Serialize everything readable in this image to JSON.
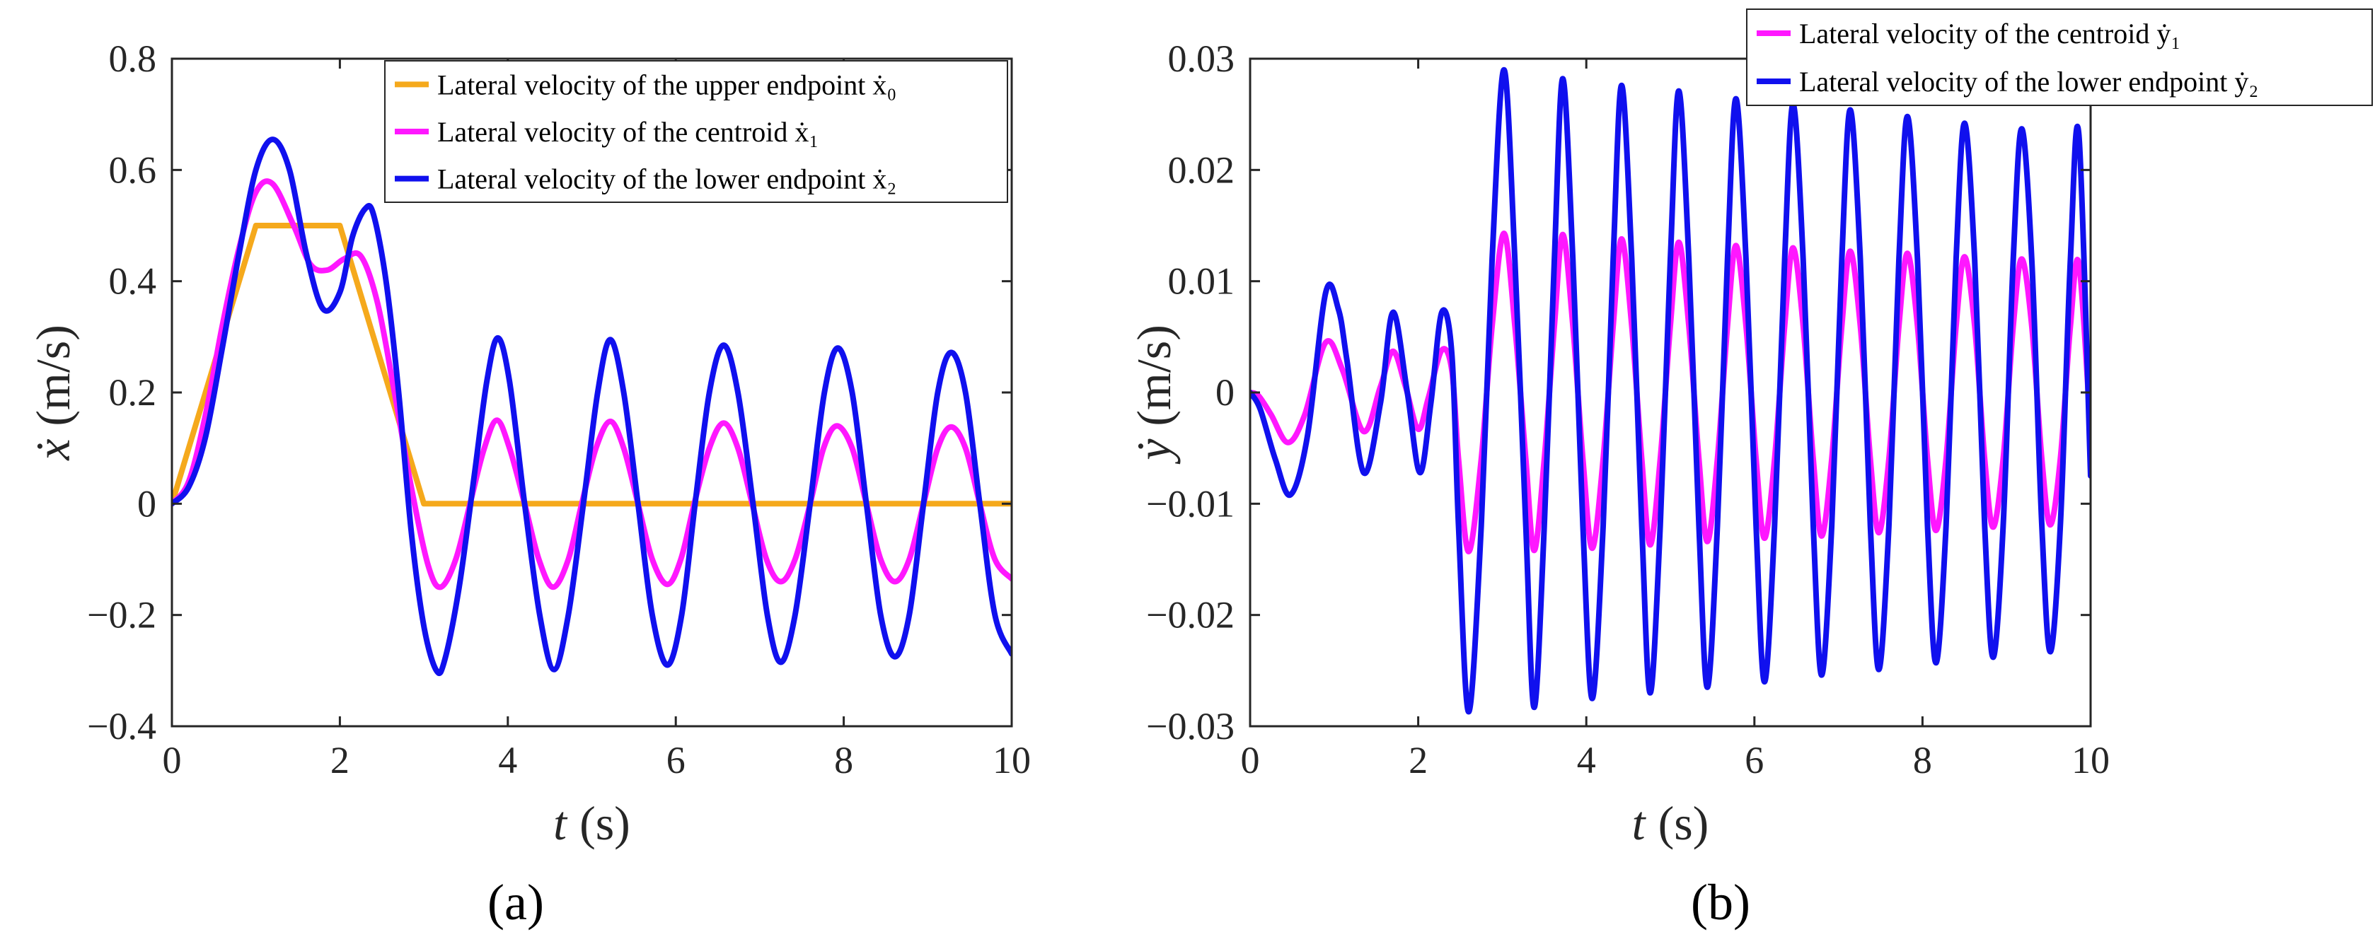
{
  "chart_data": [
    {
      "type": "line",
      "panel_label": "(a)",
      "xlabel": "t (s)",
      "xlabel_var": "t",
      "xlabel_unit": "(s)",
      "ylabel": "ẋ (m/s)",
      "ylabel_var": "ẋ",
      "ylabel_unit": "(m/s)",
      "xlim": [
        0,
        10
      ],
      "ylim": [
        -0.4,
        0.8
      ],
      "xticks": [
        0,
        2,
        4,
        6,
        8,
        10
      ],
      "xtick_labels": [
        "0",
        "2",
        "4",
        "6",
        "8",
        "10"
      ],
      "yticks": [
        -0.4,
        -0.2,
        0,
        0.2,
        0.4,
        0.6,
        0.8
      ],
      "ytick_labels": [
        "−0.4",
        "−0.2",
        "0",
        "0.2",
        "0.4",
        "0.6",
        "0.8"
      ],
      "grid": false,
      "legend_position": "top-right",
      "series": [
        {
          "name": "Lateral velocity of the upper endpoint ẋ₀",
          "color": "#f5a91c",
          "x": [
            0,
            1,
            2,
            3,
            10
          ],
          "y": [
            0,
            0.5,
            0.5,
            0,
            0
          ]
        },
        {
          "name": "Lateral velocity of the centroid ẋ₁",
          "color": "#ff17ff",
          "x": [
            0,
            0.2,
            0.4,
            0.6,
            0.8,
            1.0,
            1.2,
            1.45,
            1.65,
            1.85,
            2.05,
            2.25,
            2.45,
            2.65,
            2.85,
            3.05,
            3.2,
            3.38,
            3.55,
            3.72,
            3.87,
            4.02,
            4.2,
            4.37,
            4.54,
            4.72,
            4.88,
            5.05,
            5.22,
            5.38,
            5.55,
            5.72,
            5.9,
            6.06,
            6.22,
            6.4,
            6.57,
            6.74,
            6.91,
            7.08,
            7.25,
            7.42,
            7.6,
            7.76,
            7.92,
            8.1,
            8.27,
            8.44,
            8.61,
            8.78,
            8.95,
            9.12,
            9.28,
            9.45,
            9.62,
            9.8,
            10
          ],
          "y": [
            0,
            0.04,
            0.16,
            0.32,
            0.46,
            0.56,
            0.575,
            0.5,
            0.43,
            0.42,
            0.44,
            0.445,
            0.36,
            0.2,
            0.03,
            -0.11,
            -0.15,
            -0.1,
            0.0,
            0.1,
            0.15,
            0.1,
            0.0,
            -0.1,
            -0.15,
            -0.1,
            0.0,
            0.1,
            0.148,
            0.1,
            0.0,
            -0.1,
            -0.145,
            -0.1,
            0.0,
            0.1,
            0.145,
            0.1,
            0.0,
            -0.1,
            -0.14,
            -0.1,
            0.0,
            0.1,
            0.14,
            0.1,
            0.0,
            -0.1,
            -0.14,
            -0.1,
            0.0,
            0.1,
            0.138,
            0.1,
            0.0,
            -0.1,
            -0.135
          ]
        },
        {
          "name": "Lateral velocity of the lower endpoint ẋ₂",
          "color": "#1010ee",
          "x": [
            0,
            0.2,
            0.4,
            0.6,
            0.8,
            1.0,
            1.2,
            1.4,
            1.6,
            1.8,
            2.0,
            2.15,
            2.3,
            2.4,
            2.55,
            2.7,
            2.85,
            3.0,
            3.15,
            3.25,
            3.42,
            3.6,
            3.75,
            3.88,
            4.02,
            4.2,
            4.38,
            4.55,
            4.72,
            4.9,
            5.07,
            5.22,
            5.38,
            5.55,
            5.72,
            5.9,
            6.07,
            6.23,
            6.4,
            6.57,
            6.74,
            6.92,
            7.09,
            7.25,
            7.42,
            7.6,
            7.77,
            7.93,
            8.1,
            8.27,
            8.44,
            8.61,
            8.78,
            8.95,
            9.12,
            9.28,
            9.45,
            9.62,
            9.8,
            10
          ],
          "y": [
            0,
            0.03,
            0.12,
            0.28,
            0.45,
            0.6,
            0.655,
            0.6,
            0.45,
            0.35,
            0.38,
            0.48,
            0.53,
            0.52,
            0.4,
            0.2,
            -0.05,
            -0.22,
            -0.3,
            -0.28,
            -0.15,
            0.05,
            0.22,
            0.298,
            0.22,
            0.0,
            -0.2,
            -0.298,
            -0.2,
            0.0,
            0.2,
            0.295,
            0.2,
            0.0,
            -0.2,
            -0.29,
            -0.2,
            0.0,
            0.2,
            0.285,
            0.2,
            0.0,
            -0.2,
            -0.285,
            -0.2,
            0.0,
            0.2,
            0.28,
            0.2,
            0.0,
            -0.2,
            -0.275,
            -0.2,
            0.0,
            0.2,
            0.272,
            0.2,
            0.0,
            -0.2,
            -0.27
          ]
        }
      ]
    },
    {
      "type": "line",
      "panel_label": "(b)",
      "xlabel": "t (s)",
      "xlabel_var": "t",
      "xlabel_unit": "(s)",
      "ylabel": "ẏ (m/s)",
      "ylabel_var": "ẏ",
      "ylabel_unit": "(m/s)",
      "xlim": [
        0,
        10
      ],
      "ylim": [
        -0.03,
        0.03
      ],
      "xticks": [
        0,
        2,
        4,
        6,
        8,
        10
      ],
      "xtick_labels": [
        "0",
        "2",
        "4",
        "6",
        "8",
        "10"
      ],
      "yticks": [
        -0.03,
        -0.02,
        -0.01,
        0,
        0.01,
        0.02,
        0.03
      ],
      "ytick_labels": [
        "−0.03",
        "−0.02",
        "−0.01",
        "0",
        "0.01",
        "0.02",
        "0.03"
      ],
      "grid": false,
      "legend_position": "top-right, outside",
      "series": [
        {
          "name": "Lateral velocity of the centroid ẏ₁",
          "color": "#ff17ff",
          "x": [
            0,
            0.1,
            0.25,
            0.45,
            0.65,
            0.9,
            1.1,
            1.35,
            1.55,
            1.7,
            1.85,
            2.0,
            2.12,
            2.28,
            2.4,
            2.48,
            2.6,
            2.75,
            2.88,
            3.02,
            3.15,
            3.28,
            3.38,
            3.5,
            3.62,
            3.72,
            3.84,
            3.96,
            4.07,
            4.2,
            4.32,
            4.42,
            4.54,
            4.66,
            4.76,
            4.88,
            5.0,
            5.1,
            5.22,
            5.34,
            5.44,
            5.56,
            5.68,
            5.78,
            5.9,
            6.02,
            6.12,
            6.24,
            6.36,
            6.46,
            6.58,
            6.7,
            6.8,
            6.92,
            7.04,
            7.14,
            7.26,
            7.38,
            7.48,
            7.6,
            7.72,
            7.82,
            7.94,
            8.06,
            8.16,
            8.28,
            8.4,
            8.5,
            8.62,
            8.74,
            8.84,
            8.96,
            9.08,
            9.18,
            9.3,
            9.42,
            9.52,
            9.64,
            9.76,
            9.86,
            10
          ],
          "y": [
            0,
            -0.0003,
            -0.002,
            -0.0045,
            -0.002,
            0.0045,
            0.002,
            -0.0035,
            0.0005,
            0.0037,
            0.0005,
            -0.0033,
            -0.0005,
            0.0038,
            0.002,
            -0.006,
            -0.0143,
            -0.006,
            0.006,
            0.0143,
            0.006,
            -0.006,
            -0.0142,
            -0.006,
            0.006,
            0.0142,
            0.006,
            -0.006,
            -0.014,
            -0.006,
            0.006,
            0.0138,
            0.006,
            -0.006,
            -0.0137,
            -0.006,
            0.006,
            0.0135,
            0.006,
            -0.006,
            -0.0134,
            -0.006,
            0.006,
            0.0132,
            0.006,
            -0.006,
            -0.0131,
            -0.006,
            0.006,
            0.013,
            0.006,
            -0.006,
            -0.0129,
            -0.006,
            0.006,
            0.0127,
            0.006,
            -0.006,
            -0.0126,
            -0.006,
            0.006,
            0.0125,
            0.006,
            -0.006,
            -0.0124,
            -0.006,
            0.006,
            0.0122,
            0.006,
            -0.006,
            -0.0121,
            -0.006,
            0.006,
            0.012,
            0.006,
            -0.006,
            -0.0119,
            -0.006,
            0.006,
            0.0116,
            -0.0035
          ]
        },
        {
          "name": "Lateral velocity of the lower endpoint ẏ₂",
          "color": "#1010ee",
          "x": [
            0,
            0.12,
            0.3,
            0.48,
            0.68,
            0.9,
            1.05,
            1.15,
            1.35,
            1.55,
            1.7,
            1.87,
            2.02,
            2.15,
            2.28,
            2.4,
            2.48,
            2.6,
            2.75,
            2.88,
            3.02,
            3.15,
            3.28,
            3.38,
            3.5,
            3.62,
            3.72,
            3.84,
            3.96,
            4.07,
            4.2,
            4.32,
            4.42,
            4.54,
            4.66,
            4.76,
            4.88,
            5.0,
            5.1,
            5.22,
            5.34,
            5.44,
            5.56,
            5.68,
            5.78,
            5.9,
            6.02,
            6.12,
            6.24,
            6.36,
            6.46,
            6.58,
            6.7,
            6.8,
            6.92,
            7.04,
            7.14,
            7.26,
            7.38,
            7.48,
            7.6,
            7.72,
            7.82,
            7.94,
            8.06,
            8.16,
            8.28,
            8.4,
            8.5,
            8.62,
            8.74,
            8.84,
            8.96,
            9.08,
            9.18,
            9.3,
            9.42,
            9.52,
            9.64,
            9.76,
            9.86,
            10
          ],
          "y": [
            0,
            -0.0015,
            -0.006,
            -0.0092,
            -0.004,
            0.009,
            0.0075,
            0.003,
            -0.0072,
            -0.001,
            0.0072,
            0.0,
            -0.0072,
            -0.001,
            0.0072,
            0.0035,
            -0.012,
            -0.0287,
            -0.012,
            0.012,
            0.029,
            0.012,
            -0.012,
            -0.0283,
            -0.012,
            0.012,
            0.0282,
            0.012,
            -0.012,
            -0.0275,
            -0.012,
            0.012,
            0.0276,
            0.012,
            -0.012,
            -0.027,
            -0.012,
            0.012,
            0.0271,
            0.012,
            -0.012,
            -0.0265,
            -0.012,
            0.012,
            0.0264,
            0.012,
            -0.012,
            -0.026,
            -0.012,
            0.012,
            0.0259,
            0.012,
            -0.012,
            -0.0254,
            -0.012,
            0.012,
            0.0254,
            0.012,
            -0.012,
            -0.0249,
            -0.012,
            0.012,
            0.0248,
            0.012,
            -0.012,
            -0.0243,
            -0.012,
            0.012,
            0.0242,
            0.012,
            -0.012,
            -0.0238,
            -0.012,
            0.012,
            0.0237,
            0.012,
            -0.012,
            -0.0233,
            -0.012,
            0.012,
            0.0232,
            -0.0075
          ]
        }
      ]
    }
  ]
}
